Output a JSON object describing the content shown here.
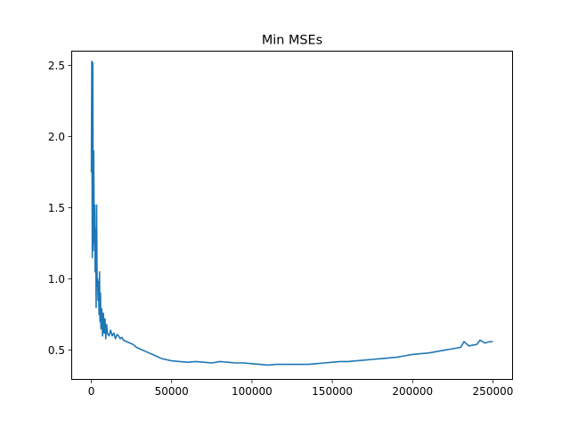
{
  "chart_data": {
    "type": "line",
    "title": "Min MSEs",
    "xlabel": "",
    "ylabel": "",
    "xlim": [
      -12500,
      262500
    ],
    "ylim": [
      0.29,
      2.6
    ],
    "xticks": [
      0,
      50000,
      100000,
      150000,
      200000,
      250000
    ],
    "xtick_labels": [
      "0",
      "50000",
      "100000",
      "150000",
      "200000",
      "250000"
    ],
    "yticks": [
      0.5,
      1.0,
      1.5,
      2.0,
      2.5
    ],
    "ytick_labels": [
      "0.5",
      "1.0",
      "1.5",
      "2.0",
      "2.5"
    ],
    "grid": false,
    "colors": {
      "line": "#1f77b4"
    },
    "series": [
      {
        "x": [
          0,
          300,
          600,
          900,
          1200,
          1500,
          1800,
          2100,
          2400,
          2700,
          3000,
          3300,
          3600,
          3900,
          4200,
          4500,
          4800,
          5100,
          5400,
          5700,
          6000,
          6500,
          7000,
          7500,
          8000,
          8500,
          9000,
          9500,
          10000,
          11000,
          12000,
          13000,
          14000,
          15000,
          16000,
          17000,
          18000,
          19000,
          20000,
          22000,
          24000,
          26000,
          28000,
          30000,
          32000,
          34000,
          36000,
          38000,
          40000,
          42000,
          44000,
          46000,
          48000,
          50000,
          55000,
          60000,
          65000,
          70000,
          75000,
          80000,
          85000,
          90000,
          95000,
          100000,
          105000,
          110000,
          115000,
          120000,
          125000,
          130000,
          135000,
          140000,
          145000,
          150000,
          155000,
          160000,
          165000,
          170000,
          175000,
          180000,
          185000,
          190000,
          195000,
          200000,
          205000,
          210000,
          215000,
          220000,
          225000,
          230000,
          232000,
          235000,
          240000,
          242000,
          245000,
          248000,
          250000
        ],
        "values": [
          1.75,
          2.53,
          1.15,
          2.52,
          1.2,
          1.9,
          1.25,
          1.52,
          1.05,
          1.35,
          0.8,
          1.52,
          0.95,
          1.0,
          0.85,
          0.98,
          0.75,
          1.05,
          0.7,
          0.9,
          0.65,
          0.79,
          0.6,
          0.76,
          0.62,
          0.72,
          0.58,
          0.68,
          0.62,
          0.6,
          0.64,
          0.6,
          0.62,
          0.58,
          0.61,
          0.6,
          0.58,
          0.59,
          0.57,
          0.56,
          0.55,
          0.54,
          0.52,
          0.51,
          0.5,
          0.49,
          0.48,
          0.47,
          0.46,
          0.45,
          0.44,
          0.435,
          0.43,
          0.425,
          0.42,
          0.415,
          0.42,
          0.415,
          0.41,
          0.42,
          0.415,
          0.41,
          0.41,
          0.405,
          0.4,
          0.395,
          0.4,
          0.4,
          0.4,
          0.4,
          0.4,
          0.405,
          0.41,
          0.415,
          0.42,
          0.42,
          0.425,
          0.43,
          0.435,
          0.44,
          0.445,
          0.45,
          0.46,
          0.47,
          0.475,
          0.48,
          0.49,
          0.5,
          0.51,
          0.52,
          0.56,
          0.53,
          0.54,
          0.57,
          0.55,
          0.56,
          0.56
        ]
      }
    ]
  }
}
